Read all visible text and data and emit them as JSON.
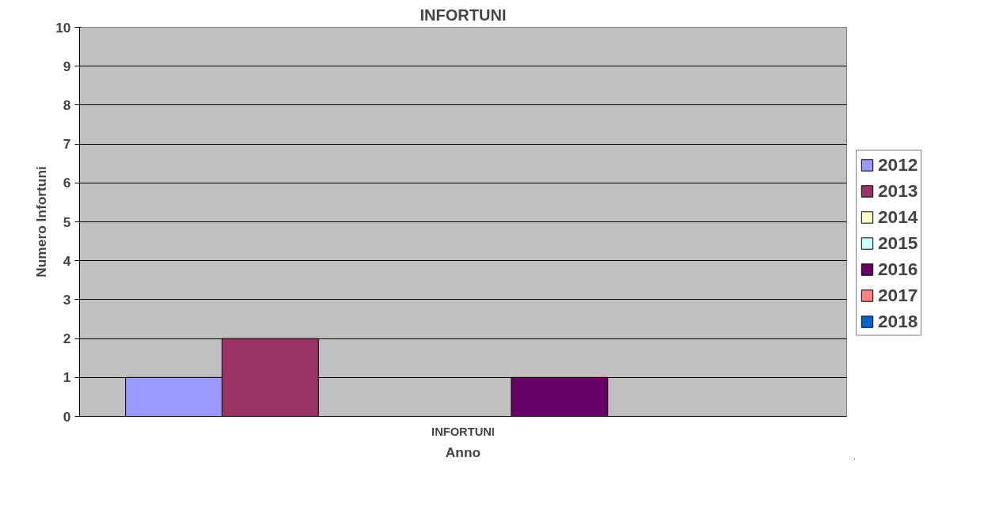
{
  "chart_data": {
    "type": "bar",
    "title": "INFORTUNI",
    "xlabel": "Anno",
    "ylabel": "Numero Infortuni",
    "categories": [
      "INFORTUNI"
    ],
    "series": [
      {
        "name": "2012",
        "color": "#9999ff",
        "values": [
          1
        ]
      },
      {
        "name": "2013",
        "color": "#993366",
        "values": [
          2
        ]
      },
      {
        "name": "2014",
        "color": "#ffffcc",
        "values": [
          0
        ]
      },
      {
        "name": "2015",
        "color": "#ccffff",
        "values": [
          0
        ]
      },
      {
        "name": "2016",
        "color": "#660066",
        "values": [
          1
        ]
      },
      {
        "name": "2017",
        "color": "#ff8080",
        "values": [
          0
        ]
      },
      {
        "name": "2018",
        "color": "#0066cc",
        "values": [
          0
        ]
      }
    ],
    "ylim": [
      0,
      10
    ],
    "yticks": [
      0,
      1,
      2,
      3,
      4,
      5,
      6,
      7,
      8,
      9,
      10
    ],
    "grid": "y",
    "legend": "right"
  }
}
